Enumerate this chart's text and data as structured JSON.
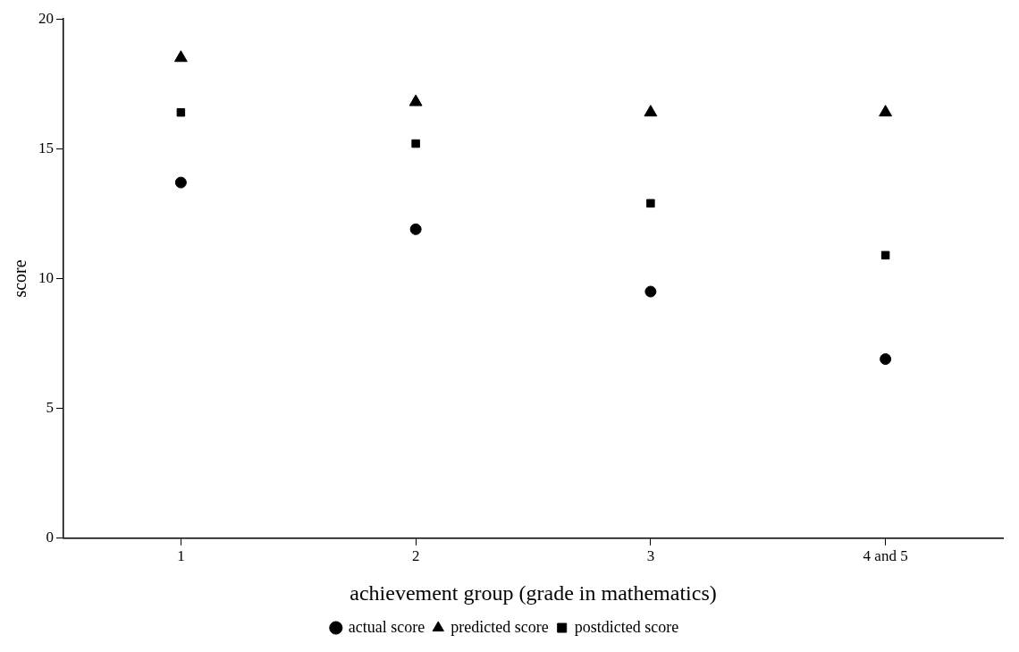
{
  "chart_data": {
    "type": "scatter",
    "xlabel": "achievement group (grade in mathematics)",
    "ylabel": "score",
    "categories": [
      "1",
      "2",
      "3",
      "4 and 5"
    ],
    "series": [
      {
        "name": "actual score",
        "color": "#000000",
        "marker": "circle",
        "values": [
          13.7,
          11.9,
          9.5,
          6.9
        ]
      },
      {
        "name": "predicted score",
        "color": "#000000",
        "marker": "triangle",
        "values": [
          18.5,
          16.8,
          16.4,
          16.4
        ]
      },
      {
        "name": "postdicted score",
        "color": "#000000",
        "marker": "square",
        "values": [
          16.4,
          15.2,
          12.9,
          10.9
        ]
      }
    ],
    "ylim": [
      0,
      20
    ],
    "yticks": [
      0,
      5,
      10,
      15,
      20
    ],
    "legend": "bottom"
  }
}
